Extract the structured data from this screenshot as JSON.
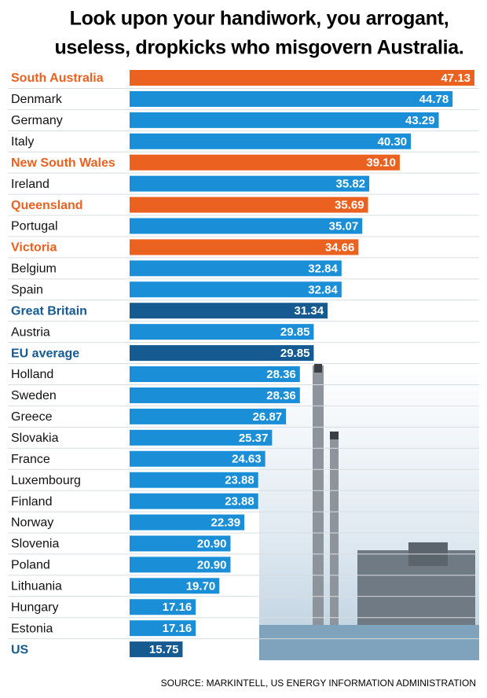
{
  "chart_data": {
    "type": "bar",
    "orientation": "horizontal",
    "title": [
      "Look  upon your handiwork, you arrogant,",
      "useless, dropkicks who misgovern Australia."
    ],
    "categories": [
      "South Australia",
      "Denmark",
      "Germany",
      "Italy",
      "New South Wales",
      "Ireland",
      "Queensland",
      "Portugal",
      "Victoria",
      "Belgium",
      "Spain",
      "Great Britain",
      "Austria",
      "EU average",
      "Holland",
      "Sweden",
      "Greece",
      "Slovakia",
      "France",
      "Luxembourg",
      "Finland",
      "Norway",
      "Slovenia",
      "Poland",
      "Lithuania",
      "Hungary",
      "Estonia",
      "US"
    ],
    "values": [
      47.13,
      44.78,
      43.29,
      40.3,
      39.1,
      35.82,
      35.69,
      35.07,
      34.66,
      32.84,
      32.84,
      31.34,
      29.85,
      29.85,
      28.36,
      28.36,
      26.87,
      25.37,
      24.63,
      23.88,
      23.88,
      22.39,
      20.9,
      20.9,
      19.7,
      17.16,
      17.16,
      15.75
    ],
    "value_labels": [
      "47.13",
      "44.78",
      "43.29",
      "40.30",
      "39.10",
      "35.82",
      "35.69",
      "35.07",
      "34.66",
      "32.84",
      "32.84",
      "31.34",
      "29.85",
      "29.85",
      "28.36",
      "28.36",
      "26.87",
      "25.37",
      "24.63",
      "23.88",
      "23.88",
      "22.39",
      "20.90",
      "20.90",
      "19.70",
      "17.16",
      "17.16",
      "15.75"
    ],
    "color": "#1a8fd8",
    "colors": [
      "#ea6120",
      "#1a8fd8",
      "#1a8fd8",
      "#1a8fd8",
      "#ea6120",
      "#1a8fd8",
      "#ea6120",
      "#1a8fd8",
      "#ea6120",
      "#1a8fd8",
      "#1a8fd8",
      "#155b92",
      "#1a8fd8",
      "#155b92",
      "#1a8fd8",
      "#1a8fd8",
      "#1a8fd8",
      "#1a8fd8",
      "#1a8fd8",
      "#1a8fd8",
      "#1a8fd8",
      "#1a8fd8",
      "#1a8fd8",
      "#1a8fd8",
      "#1a8fd8",
      "#1a8fd8",
      "#1a8fd8",
      "#155b92"
    ],
    "source": "SOURCE: MARKINTELL, US ENERGY INFORMATION ADMINISTRATION"
  }
}
